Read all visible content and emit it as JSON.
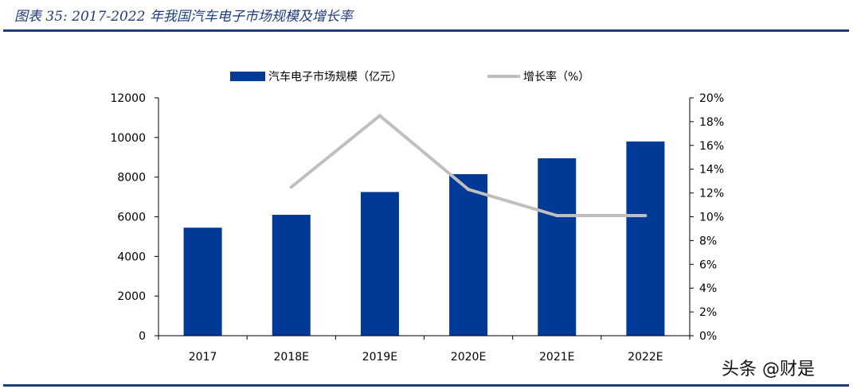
{
  "figure": {
    "title": "图表 35:  2017-2022 年我国汽车电子市场规模及增长率"
  },
  "watermark": "头条 @财是",
  "colors": {
    "bar": "#003a96",
    "line": "#bfbfbf",
    "title": "#1f3d7a"
  },
  "chart_data": {
    "type": "bar",
    "categories": [
      "2017",
      "2018E",
      "2019E",
      "2020E",
      "2021E",
      "2022E"
    ],
    "series": [
      {
        "name": "汽车电子市场规模（亿元）",
        "type": "bar",
        "axis": "left",
        "values": [
          5450,
          6100,
          7250,
          8150,
          8950,
          9800
        ]
      },
      {
        "name": "增长率（%）",
        "type": "line",
        "axis": "right",
        "values": [
          null,
          12.5,
          18.5,
          12.3,
          10.1,
          10.1
        ]
      }
    ],
    "ylim": [
      0,
      12000
    ],
    "yticks": [
      "0",
      "2000",
      "4000",
      "6000",
      "8000",
      "10000",
      "12000"
    ],
    "y2lim": [
      0,
      20
    ],
    "y2ticks": [
      "0%",
      "2%",
      "4%",
      "6%",
      "8%",
      "10%",
      "12%",
      "14%",
      "16%",
      "18%",
      "20%"
    ],
    "legend": "top",
    "grid": false
  }
}
